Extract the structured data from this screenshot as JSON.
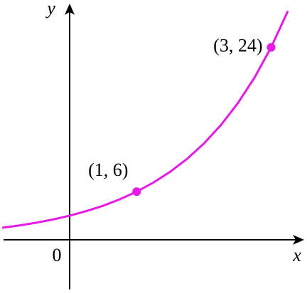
{
  "chart_data": {
    "type": "line",
    "x_label": "x",
    "y_label": "y",
    "origin_label": "0",
    "xlim": [
      -0.98,
      3.46
    ],
    "ylim": [
      -6.2,
      29.2
    ],
    "color": "#e619e6",
    "x": [
      -1,
      -0.75,
      -0.5,
      -0.25,
      0,
      0.25,
      0.5,
      0.75,
      1,
      1.25,
      1.5,
      1.75,
      2,
      2.25,
      2.5,
      2.75,
      3,
      3.25
    ],
    "values": [
      1.5,
      1.78,
      2.12,
      2.52,
      3,
      3.57,
      4.24,
      5.05,
      6,
      7.14,
      8.49,
      10.09,
      12,
      14.27,
      16.97,
      20.18,
      24,
      28.54
    ],
    "points": {
      "x": [
        1,
        3
      ],
      "values": [
        6,
        24
      ],
      "labels": [
        "(1, 6)",
        "(3, 24)"
      ]
    }
  }
}
